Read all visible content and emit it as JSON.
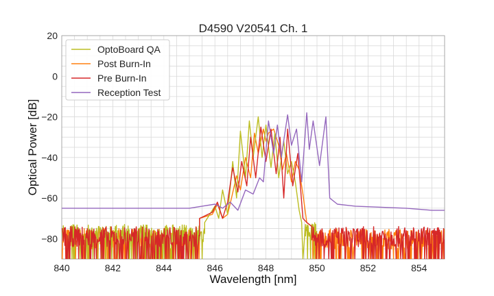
{
  "chart_data": {
    "type": "line",
    "title": "D4590 V20541 Ch. 1",
    "xlabel": "Wavelength [nm]",
    "ylabel": "Optical Power [dB]",
    "xlim": [
      840,
      855
    ],
    "ylim": [
      -90,
      20
    ],
    "xticks": [
      840,
      842,
      844,
      846,
      848,
      850,
      852,
      854
    ],
    "yticks": [
      20,
      0,
      -20,
      -40,
      -60,
      -80
    ],
    "grid": true,
    "legend": "top-left",
    "series": [
      {
        "name": "OptoBoard QA",
        "color": "#bcbd22",
        "noise": {
          "x_start": 840.0,
          "x_end": 845.6,
          "y_center": -78,
          "y_range": 10
        },
        "x": [
          845.6,
          845.8,
          846.0,
          846.15,
          846.3,
          846.5,
          846.7,
          846.85,
          847.0,
          847.2,
          847.35,
          847.5,
          847.7,
          847.85,
          848.0,
          848.2,
          848.35,
          848.5,
          848.7,
          848.85,
          849.0,
          849.15,
          849.3,
          849.4,
          849.45,
          849.55
        ],
        "y": [
          -72,
          -68,
          -64,
          -70,
          -56,
          -68,
          -42,
          -60,
          -27,
          -50,
          -22,
          -40,
          -20,
          -40,
          -24,
          -45,
          -28,
          -50,
          -32,
          -48,
          -42,
          -52,
          -66,
          -72,
          -90,
          -73
        ],
        "noise2": {
          "x_start": 849.55,
          "x_end": 850.0,
          "y_center": -76,
          "y_range": 8
        }
      },
      {
        "name": "Post Burn-In",
        "color": "#ff7f0e",
        "noise": {
          "x_start": 840.0,
          "x_end": 845.4,
          "y_center": -80,
          "y_range": 10
        },
        "x": [
          845.4,
          845.9,
          846.1,
          846.3,
          846.5,
          846.65,
          846.85,
          847.0,
          847.2,
          847.4,
          847.55,
          847.7,
          847.9,
          848.0,
          848.1,
          848.3,
          848.5,
          848.65,
          848.8,
          849.0,
          849.15,
          849.3,
          849.45,
          849.6,
          849.8
        ],
        "y": [
          -70,
          -68,
          -63,
          -70,
          -68,
          -60,
          -49,
          -56,
          -40,
          -50,
          -28,
          -38,
          -26,
          -32,
          -28,
          -26,
          -34,
          -46,
          -38,
          -52,
          -42,
          -46,
          -58,
          -72,
          -74
        ],
        "noise2": {
          "x_start": 849.8,
          "x_end": 855.0,
          "y_center": -80,
          "y_range": 10
        }
      },
      {
        "name": "Pre Burn-In",
        "color": "#d62728",
        "noise": {
          "x_start": 840.0,
          "x_end": 845.4,
          "y_center": -79,
          "y_range": 10
        },
        "x": [
          845.4,
          845.9,
          846.1,
          846.3,
          846.5,
          846.7,
          846.9,
          847.05,
          847.25,
          847.4,
          847.6,
          847.8,
          848.0,
          848.2,
          848.4,
          848.55,
          848.7,
          848.85,
          849.05,
          849.25,
          849.45,
          849.6,
          849.8
        ],
        "y": [
          -70,
          -67,
          -62,
          -70,
          -62,
          -45,
          -57,
          -42,
          -54,
          -30,
          -50,
          -25,
          -42,
          -26,
          -48,
          -30,
          -60,
          -26,
          -54,
          -38,
          -70,
          -72,
          -74
        ],
        "noise2": {
          "x_start": 849.8,
          "x_end": 855.0,
          "y_center": -79,
          "y_range": 10
        }
      },
      {
        "name": "Reception Test",
        "color": "#9467bd",
        "x": [
          840.0,
          841.0,
          842.0,
          843.0,
          844.0,
          845.0,
          845.5,
          846.0,
          846.3,
          846.6,
          846.9,
          847.2,
          847.5,
          847.75,
          847.9,
          848.1,
          848.3,
          848.45,
          848.6,
          848.85,
          849.0,
          849.2,
          849.4,
          849.6,
          849.7,
          849.85,
          850.1,
          850.35,
          850.5,
          850.8,
          851.5,
          852.5,
          853.5,
          854.5,
          855.0
        ],
        "y": [
          -65,
          -65,
          -65,
          -65,
          -65,
          -65,
          -64,
          -63,
          -65,
          -62,
          -66,
          -56,
          -58,
          -50,
          -52,
          -22,
          -38,
          -24,
          -40,
          -19,
          -34,
          -26,
          -52,
          -18,
          -36,
          -22,
          -44,
          -20,
          -60,
          -63,
          -64,
          -64.5,
          -65,
          -66,
          -66
        ]
      }
    ]
  }
}
